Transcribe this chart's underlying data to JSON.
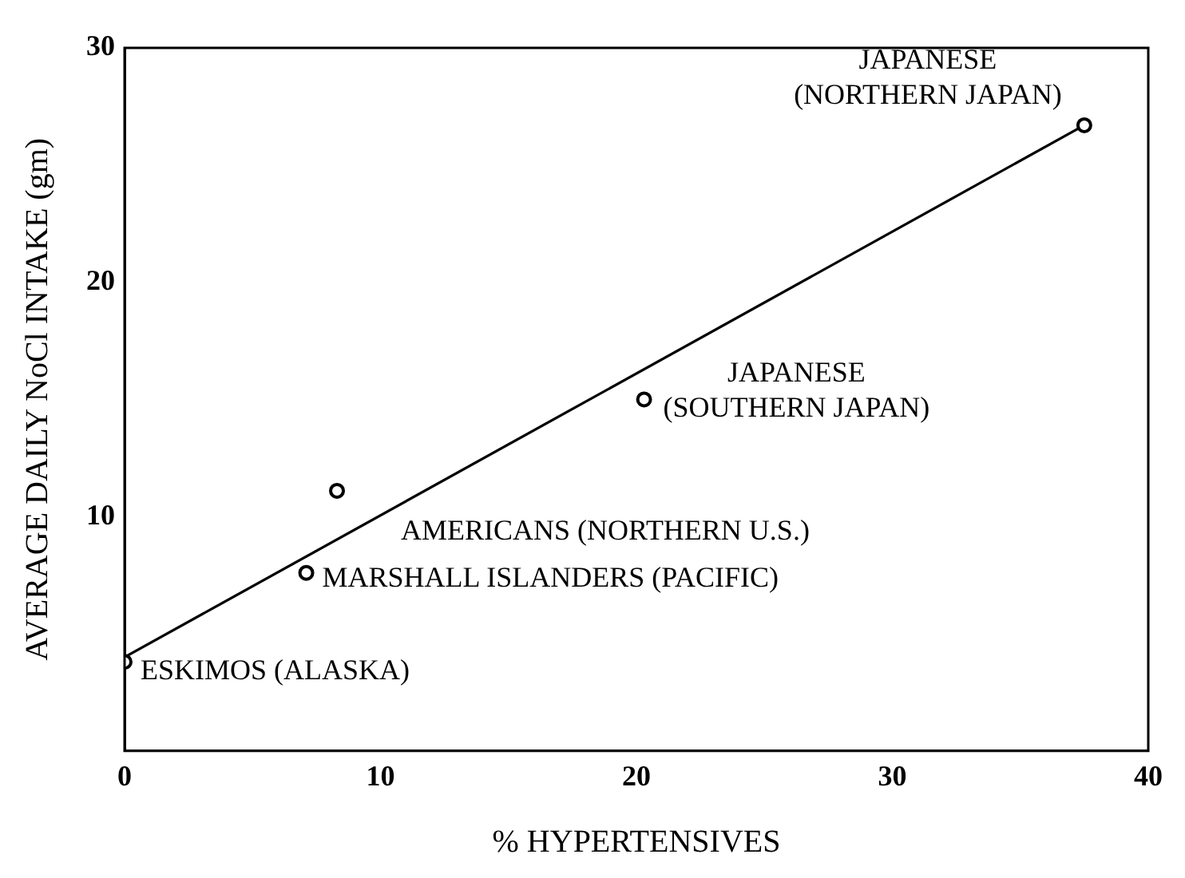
{
  "chart_data": {
    "type": "scatter",
    "xlabel": "% HYPERTENSIVES",
    "ylabel": "AVERAGE DAILY NoCl INTAKE (gm)",
    "series": [
      {
        "color": "#000000",
        "marker": "circle",
        "x": [
          0,
          7.1,
          8.3,
          20.3,
          37.5
        ],
        "values": [
          3.8,
          7.6,
          11.1,
          15.0,
          26.7
        ]
      },
      {
        "type": "line",
        "color": "#000000",
        "marker": "none",
        "x": [
          0,
          37.5
        ],
        "values": [
          4.0,
          26.7
        ]
      }
    ],
    "annotations": [
      {
        "text": "ESKIMOS (ALASKA)",
        "x": 0,
        "y": 3.8
      },
      {
        "text": "MARSHALL ISLANDERS (PACIFIC)",
        "x": 7.1,
        "y": 7.6
      },
      {
        "text": "AMERICANS (NORTHERN U.S.)",
        "x": 8.3,
        "y": 11.1
      },
      {
        "text": "JAPANESE\n(SOUTHERN JAPAN)",
        "x": 20.3,
        "y": 15.0
      },
      {
        "text": "JAPANESE\n(NORTHERN JAPAN)",
        "x": 37.5,
        "y": 26.7
      }
    ],
    "xlim": [
      0,
      40
    ],
    "ylim": [
      0,
      30
    ],
    "xticks": [
      0,
      10,
      20,
      30,
      40
    ],
    "yticks": [
      10,
      20,
      30
    ],
    "grid": false,
    "legend": false,
    "line_style": "solid"
  }
}
